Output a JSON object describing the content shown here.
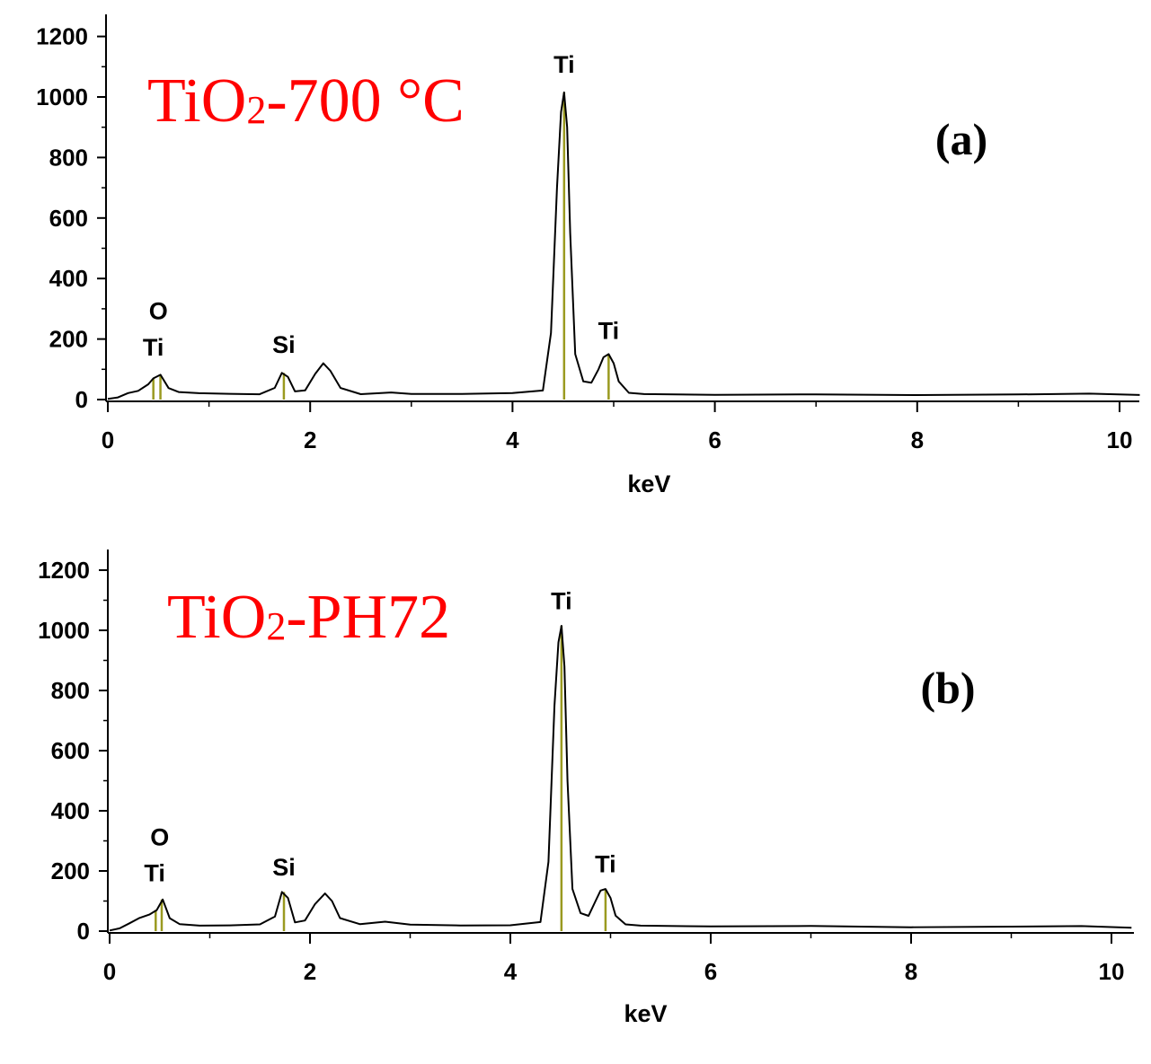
{
  "colors": {
    "spectrum": "#000000",
    "marker": "#9a9a20",
    "sample_label": "#ff0000"
  },
  "chart_data": [
    {
      "type": "line",
      "panel": "(a)",
      "sample_label": {
        "main": "TiO",
        "sub": "2",
        "rest": "-700 °C"
      },
      "xlabel": "keV",
      "ylabel": "",
      "xlim": [
        0,
        10.2
      ],
      "ylim": [
        0,
        1250
      ],
      "xticks": [
        "0",
        "2",
        "4",
        "6",
        "8",
        "10"
      ],
      "yticks": [
        "0",
        "200",
        "400",
        "600",
        "800",
        "1000",
        "1200"
      ],
      "grid": false,
      "series": [
        {
          "x": [
            0,
            0.1,
            0.2,
            0.3,
            0.4,
            0.45,
            0.52,
            0.6,
            0.7,
            0.9,
            1.2,
            1.5,
            1.65,
            1.72,
            1.78,
            1.85,
            1.95,
            2.05,
            2.13,
            2.2,
            2.3,
            2.5,
            2.8,
            3.0,
            3.5,
            4.0,
            4.3,
            4.38,
            4.44,
            4.48,
            4.51,
            4.54,
            4.57,
            4.62,
            4.7,
            4.78,
            4.85,
            4.9,
            4.95,
            5.0,
            5.05,
            5.15,
            5.3,
            6,
            7,
            8,
            9,
            9.7,
            10.2
          ],
          "y": [
            2,
            8,
            20,
            30,
            50,
            70,
            82,
            40,
            22,
            18,
            18,
            20,
            40,
            88,
            75,
            28,
            30,
            85,
            120,
            95,
            40,
            20,
            25,
            22,
            20,
            22,
            30,
            220,
            700,
            950,
            1015,
            900,
            550,
            150,
            60,
            55,
            100,
            140,
            150,
            120,
            60,
            20,
            15,
            15,
            14,
            14,
            14,
            18,
            14
          ]
        }
      ],
      "peaks": [
        {
          "element": "Ti",
          "x": 0.45,
          "y": 70
        },
        {
          "element": "O",
          "x": 0.52,
          "y": 82
        },
        {
          "element": "Si",
          "x": 1.74,
          "y": 88
        },
        {
          "element": "Ti",
          "x": 4.51,
          "y": 1015
        },
        {
          "element": "Ti",
          "x": 4.95,
          "y": 150
        }
      ],
      "annotations": [
        {
          "text": "O",
          "x": 0.5,
          "y": 265
        },
        {
          "text": "Ti",
          "x": 0.45,
          "y": 145
        },
        {
          "text": "Si",
          "x": 1.74,
          "y": 155
        },
        {
          "text": "Ti",
          "x": 4.51,
          "y": 1080
        },
        {
          "text": "Ti",
          "x": 4.95,
          "y": 200
        }
      ]
    },
    {
      "type": "line",
      "panel": "(b)",
      "sample_label": {
        "main": "TiO",
        "sub": "2",
        "rest": "-PH72"
      },
      "xlabel": "keV",
      "ylabel": "",
      "xlim": [
        0,
        10.2
      ],
      "ylim": [
        0,
        1250
      ],
      "xticks": [
        "0",
        "2",
        "4",
        "6",
        "8",
        "10"
      ],
      "yticks": [
        "0",
        "200",
        "400",
        "600",
        "800",
        "1000",
        "1200"
      ],
      "grid": false,
      "series": [
        {
          "x": [
            0,
            0.1,
            0.2,
            0.3,
            0.4,
            0.47,
            0.53,
            0.6,
            0.7,
            0.9,
            1.2,
            1.5,
            1.65,
            1.72,
            1.78,
            1.85,
            1.95,
            2.05,
            2.15,
            2.22,
            2.3,
            2.5,
            2.75,
            3.0,
            3.5,
            4.0,
            4.3,
            4.38,
            4.44,
            4.48,
            4.51,
            4.54,
            4.57,
            4.62,
            4.7,
            4.78,
            4.85,
            4.9,
            4.95,
            5.0,
            5.05,
            5.15,
            5.3,
            6,
            7,
            8,
            9,
            9.7,
            10.2
          ],
          "y": [
            2,
            10,
            25,
            45,
            55,
            70,
            105,
            45,
            20,
            15,
            18,
            25,
            50,
            130,
            110,
            30,
            35,
            90,
            125,
            100,
            45,
            25,
            28,
            25,
            20,
            20,
            30,
            230,
            750,
            960,
            1015,
            880,
            500,
            140,
            60,
            50,
            100,
            135,
            140,
            110,
            55,
            20,
            15,
            15,
            14,
            12,
            12,
            15,
            10
          ]
        }
      ],
      "peaks": [
        {
          "element": "Ti",
          "x": 0.46,
          "y": 70
        },
        {
          "element": "O",
          "x": 0.52,
          "y": 105
        },
        {
          "element": "Si",
          "x": 1.74,
          "y": 130
        },
        {
          "element": "Ti",
          "x": 4.51,
          "y": 1015
        },
        {
          "element": "Ti",
          "x": 4.95,
          "y": 140
        }
      ],
      "annotations": [
        {
          "text": "O",
          "x": 0.5,
          "y": 285
        },
        {
          "text": "Ti",
          "x": 0.45,
          "y": 165
        },
        {
          "text": "Si",
          "x": 1.74,
          "y": 185
        },
        {
          "text": "Ti",
          "x": 4.51,
          "y": 1070
        },
        {
          "text": "Ti",
          "x": 4.95,
          "y": 195
        }
      ]
    }
  ]
}
